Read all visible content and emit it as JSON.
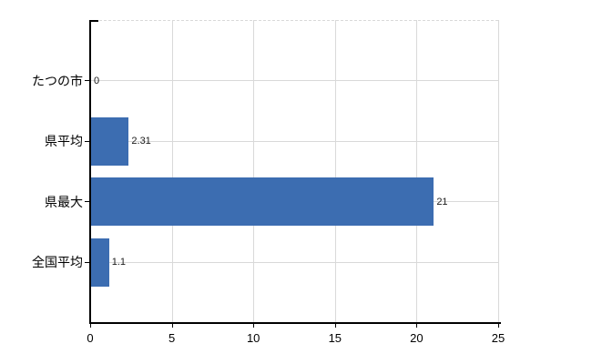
{
  "chart_data": {
    "type": "bar",
    "orientation": "horizontal",
    "title": "",
    "xlabel": "",
    "ylabel": "",
    "categories": [
      "たつの市",
      "県平均",
      "県最大",
      "全国平均"
    ],
    "values": [
      0,
      2.31,
      21,
      1.1
    ],
    "value_labels": [
      "0",
      "2.31",
      "21",
      "1.1"
    ],
    "x_ticks": [
      0,
      5,
      10,
      15,
      20,
      25
    ],
    "x_tick_labels": [
      "0",
      "5",
      "10",
      "15",
      "20",
      "25"
    ],
    "xlim": [
      0,
      25
    ],
    "grid": true,
    "grid_horizontal_at_category_centers": true,
    "legend": false,
    "colors": {
      "bar": "#3c6db1",
      "gridline": "#d9d9d9",
      "axis": "#000000",
      "text": "#000000",
      "background": "#ffffff"
    }
  }
}
